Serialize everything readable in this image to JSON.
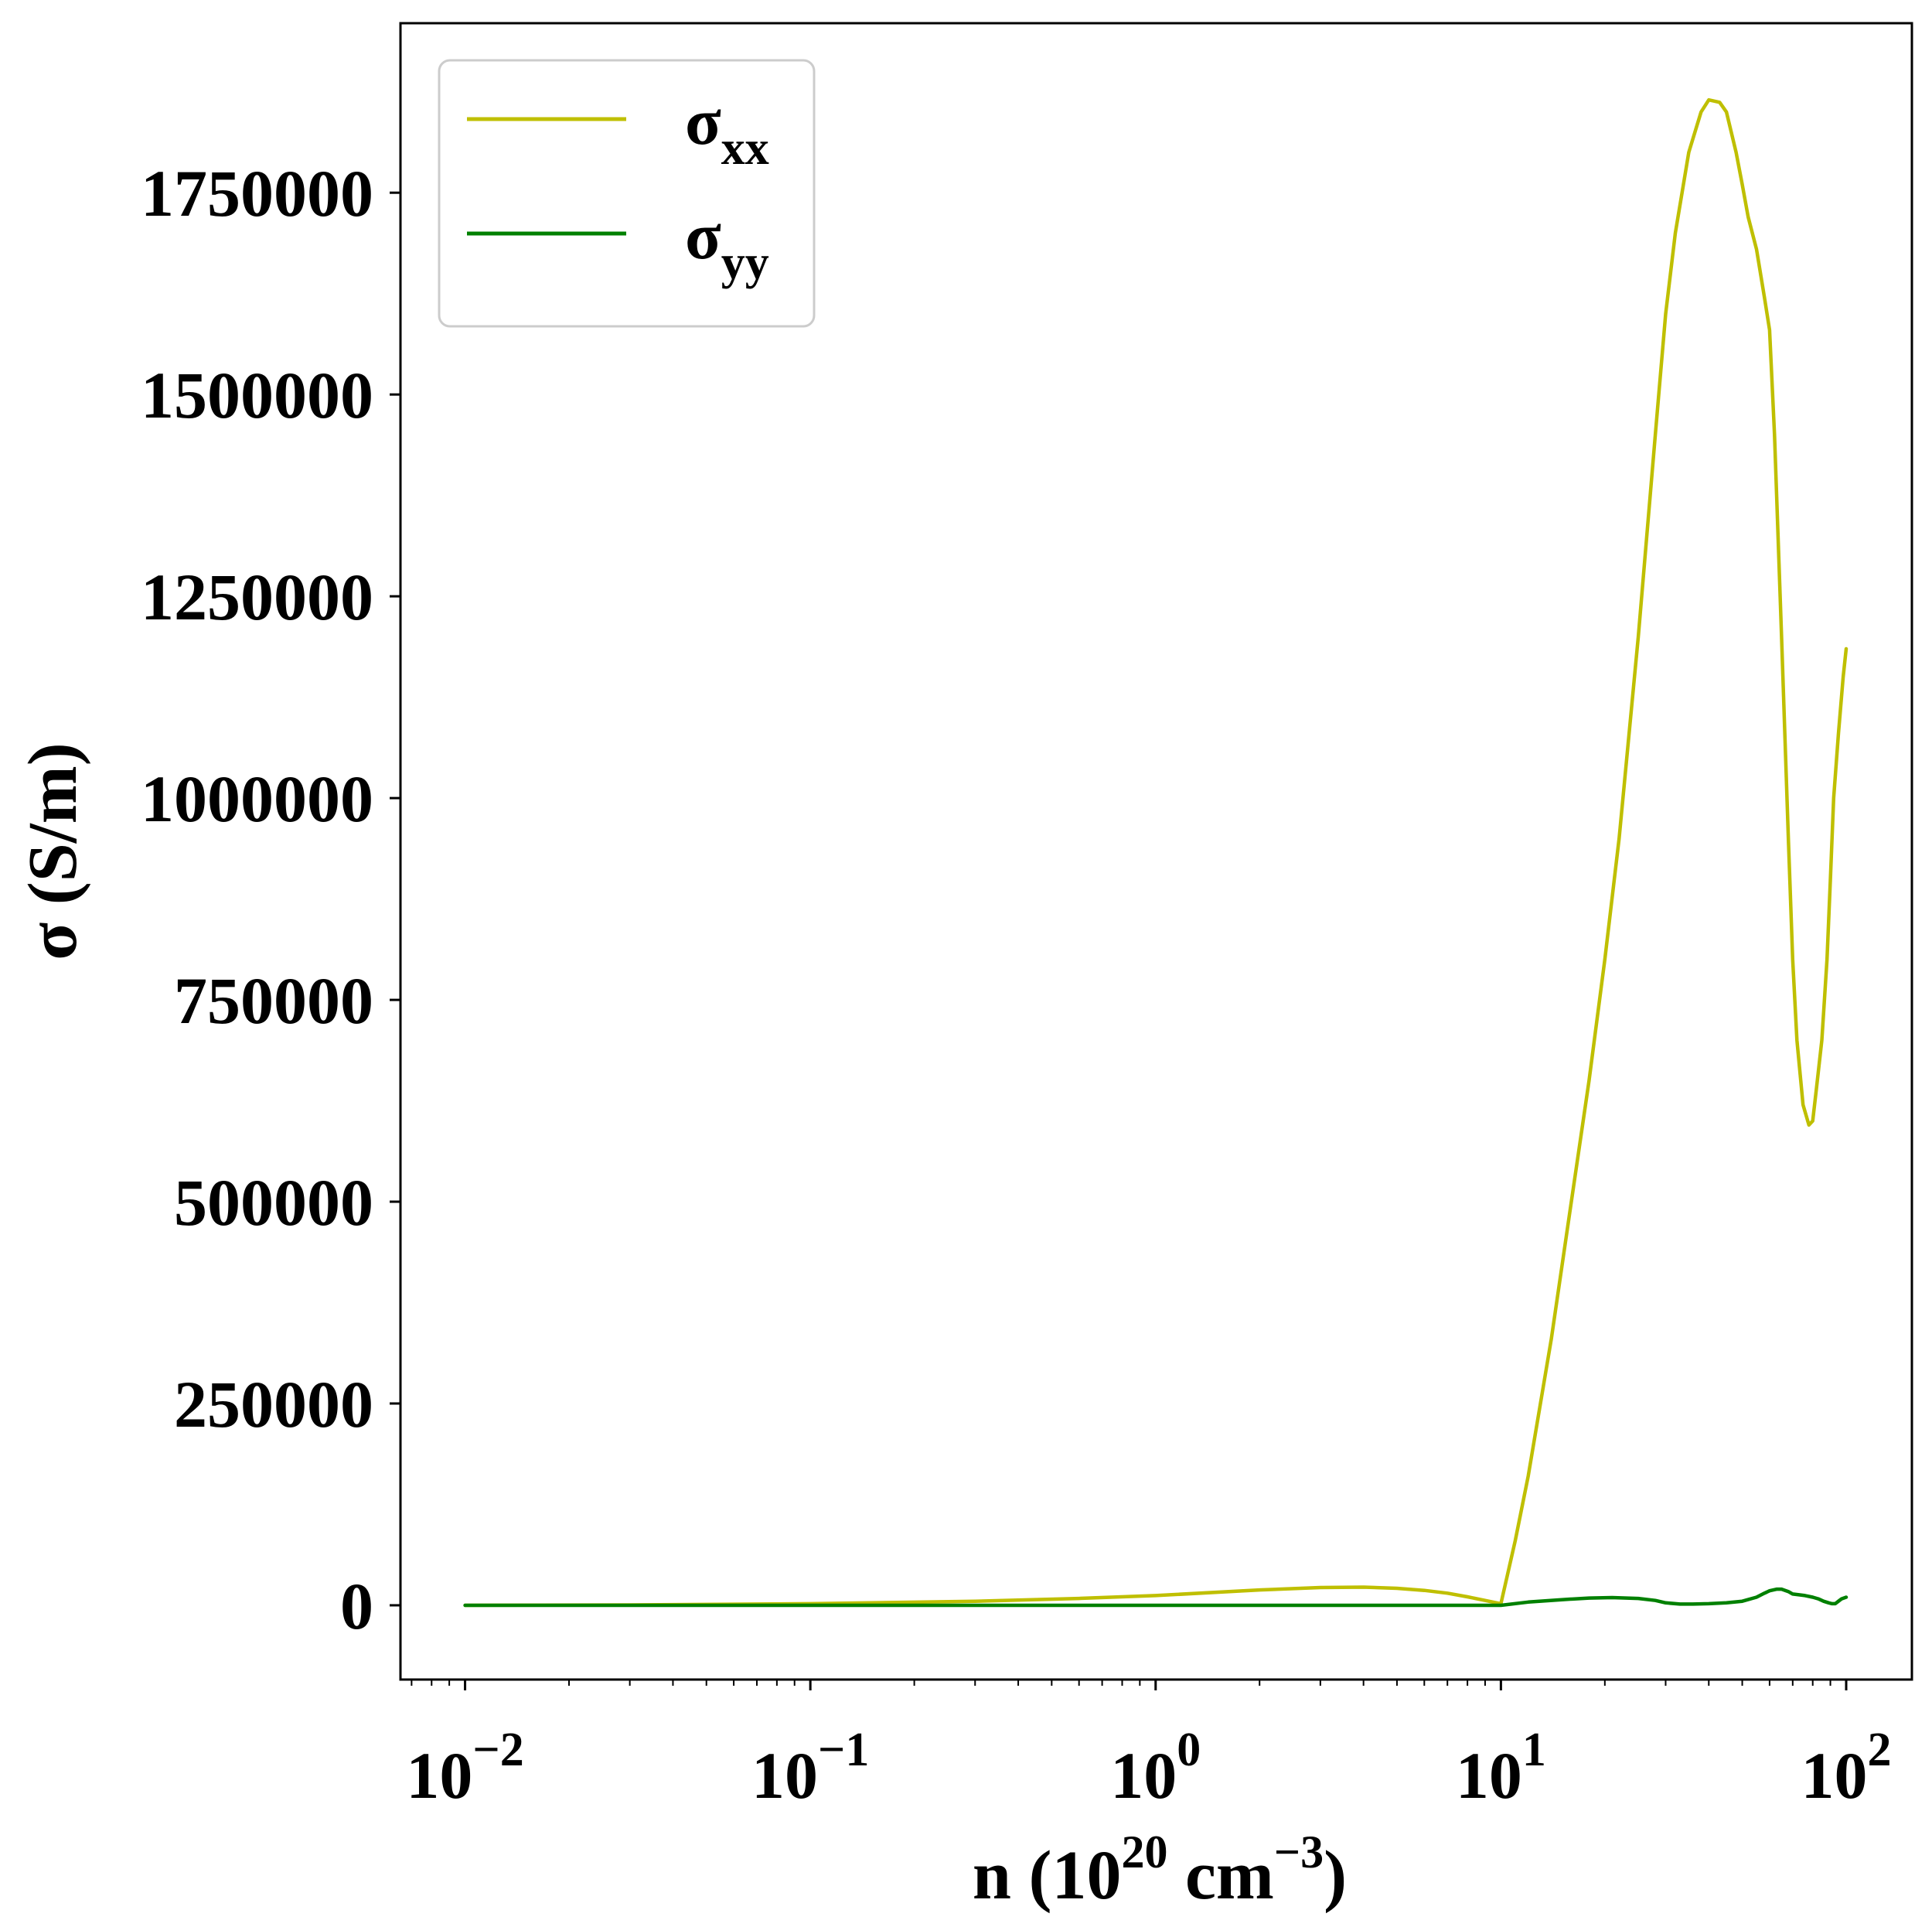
{
  "chart_data": {
    "type": "line",
    "xscale": "log",
    "xlim": [
      0.0065,
      155
    ],
    "ylim": [
      -92000,
      1960000
    ],
    "xticks": [
      {
        "value": 0.01,
        "base": "10",
        "exp": "−2"
      },
      {
        "value": 0.1,
        "base": "10",
        "exp": "−1"
      },
      {
        "value": 1,
        "base": "10",
        "exp": "0"
      },
      {
        "value": 10,
        "base": "10",
        "exp": "1"
      },
      {
        "value": 100,
        "base": "10",
        "exp": "2"
      }
    ],
    "yticks": [
      0,
      250000,
      500000,
      750000,
      1000000,
      1250000,
      1500000,
      1750000
    ],
    "ytick_labels": [
      "0",
      "250000",
      "500000",
      "750000",
      "1000000",
      "1250000",
      "1500000",
      "1750000"
    ],
    "xlabel": {
      "prefix": "n (10",
      "sup1": "20",
      "mid": " cm",
      "sup2": "−3",
      "suffix": ")"
    },
    "ylabel": "σ (S/m)",
    "grid": false,
    "legend_position": "upper-left",
    "series": [
      {
        "name": "σxx",
        "label_main": "σ",
        "label_sub": "xx",
        "color": "#bfbf00",
        "x": [
          0.01,
          0.03,
          0.1,
          0.3,
          0.6,
          1,
          2,
          3,
          4,
          5,
          6,
          7,
          8,
          9,
          10,
          11,
          12,
          14,
          16,
          18,
          20,
          22,
          25,
          28,
          30,
          32,
          35,
          38,
          40,
          43,
          45,
          48,
          50,
          52,
          55,
          58,
          60,
          62,
          65,
          68,
          70,
          72,
          75,
          78,
          80,
          82,
          85,
          88,
          90,
          92,
          95,
          98,
          100
        ],
        "y": [
          0,
          400,
          2000,
          5000,
          8500,
          12000,
          19000,
          22000,
          22500,
          21000,
          18500,
          15000,
          10500,
          6000,
          2000,
          80000,
          160000,
          330000,
          500000,
          650000,
          800000,
          950000,
          1200000,
          1450000,
          1600000,
          1700000,
          1800000,
          1850000,
          1865000,
          1862000,
          1850000,
          1800000,
          1760000,
          1720000,
          1680000,
          1620000,
          1580000,
          1450000,
          1200000,
          950000,
          800000,
          700000,
          620000,
          595000,
          600000,
          640000,
          700000,
          800000,
          900000,
          1000000,
          1080000,
          1150000,
          1185000
        ]
      },
      {
        "name": "σyy",
        "label_main": "σ",
        "label_sub": "yy",
        "color": "#008000",
        "x": [
          0.01,
          0.1,
          1,
          5,
          10,
          12,
          15,
          18,
          21,
          25,
          28,
          30,
          33,
          36,
          40,
          45,
          50,
          55,
          58,
          60,
          63,
          65,
          68,
          70,
          73,
          76,
          80,
          83,
          86,
          89,
          91,
          93,
          95,
          97,
          100
        ],
        "y": [
          0,
          0,
          0,
          0,
          0,
          4000,
          7000,
          9000,
          9500,
          8500,
          6000,
          3000,
          1500,
          1500,
          2000,
          3000,
          5000,
          10000,
          15000,
          18000,
          20000,
          20000,
          17000,
          14000,
          13000,
          12000,
          10000,
          8000,
          5000,
          3000,
          2000,
          2000,
          5000,
          8000,
          10000
        ]
      }
    ]
  }
}
